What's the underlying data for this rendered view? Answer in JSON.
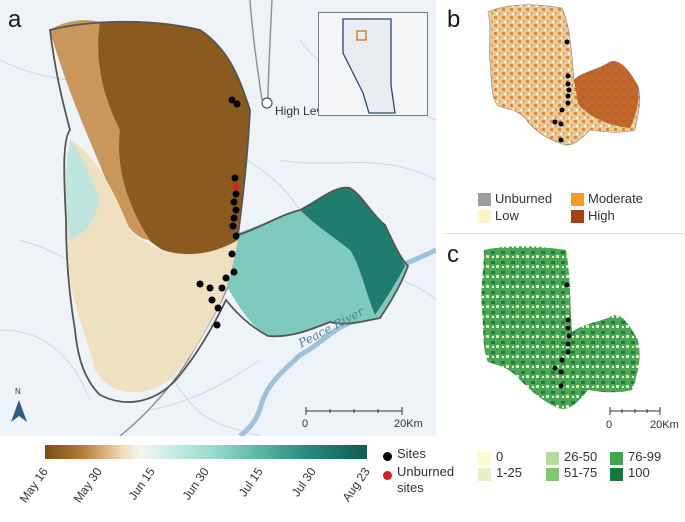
{
  "panels": {
    "a": "a",
    "b": "b",
    "c": "c"
  },
  "map_a": {
    "city_label": "High Level",
    "river_label": "Peace River",
    "north_label": "N",
    "scale": {
      "start": "0",
      "end": "20",
      "unit": "Km"
    }
  },
  "map_c": {
    "scale": {
      "start": "0",
      "end": "20",
      "unit": "Km"
    }
  },
  "colorbar": {
    "ticks": [
      "May 16",
      "May 30",
      "Jun 15",
      "Jun 30",
      "Jul 15",
      "Jul 30",
      "Aug 23"
    ],
    "colors": [
      "#7a4d12",
      "#f0dcb8",
      "#f3f7f0",
      "#9ad9cf",
      "#0e5c52"
    ]
  },
  "site_legend": {
    "sites": "Sites",
    "unburned_line1": "Unburned",
    "unburned_line2": "sites",
    "site_color": "#000000",
    "unburned_color": "#d62020"
  },
  "severity_legend": [
    {
      "label": "Unburned",
      "color": "#9e9e9e"
    },
    {
      "label": "Moderate",
      "color": "#f39a2e"
    },
    {
      "label": "Low",
      "color": "#fbf5c8"
    },
    {
      "label": "High",
      "color": "#a8400f"
    }
  ],
  "cover_legend": [
    {
      "label": "0",
      "color": "#fdfbd4"
    },
    {
      "label": "1-25",
      "color": "#e4f2c4"
    },
    {
      "label": "26-50",
      "color": "#b3dd98"
    },
    {
      "label": "51-75",
      "color": "#80c770"
    },
    {
      "label": "76-99",
      "color": "#3ea84a"
    },
    {
      "label": "100",
      "color": "#137a35"
    }
  ]
}
